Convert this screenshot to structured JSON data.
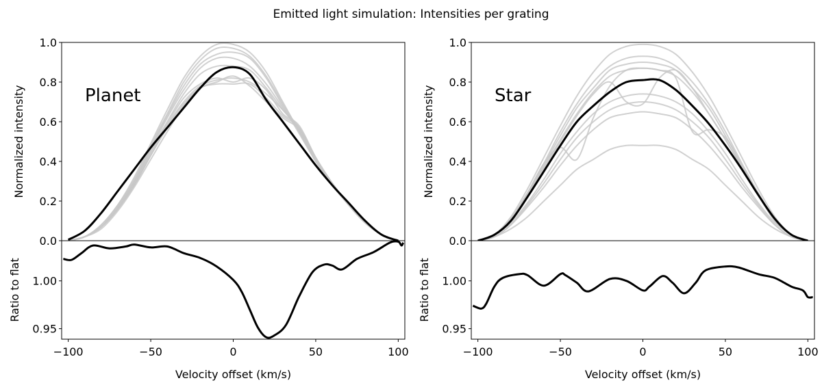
{
  "title": "Emitted light simulation: Intensities per grating",
  "colors": {
    "mean_line": "#000000",
    "grating_lines": "#c8c8c8",
    "axes": "#000000"
  },
  "chart_data": [
    {
      "type": "line",
      "panel_label": "Planet",
      "xlabel": "Velocity offset (km/s)",
      "xlim": [
        -104,
        104
      ],
      "xticks": [
        -100,
        -50,
        0,
        50,
        100
      ],
      "xtick_labels": [
        "−100",
        "−50",
        "0",
        "50",
        "100"
      ],
      "top": {
        "ylabel": "Normalized intensity",
        "ylim": [
          0,
          1.0
        ],
        "yticks": [
          0.0,
          0.2,
          0.4,
          0.6,
          0.8,
          1.0
        ],
        "ytick_labels": [
          "0.0",
          "0.2",
          "0.4",
          "0.6",
          "0.8",
          "1.0"
        ],
        "x": [
          -100,
          -90,
          -80,
          -70,
          -60,
          -50,
          -40,
          -30,
          -20,
          -10,
          0,
          10,
          20,
          30,
          40,
          50,
          60,
          70,
          80,
          90,
          100
        ],
        "grating_series": [
          [
            0,
            0.02,
            0.08,
            0.18,
            0.32,
            0.49,
            0.66,
            0.82,
            0.93,
            0.99,
            0.99,
            0.95,
            0.85,
            0.7,
            0.55,
            0.4,
            0.28,
            0.18,
            0.09,
            0.03,
            0
          ],
          [
            0,
            0.02,
            0.08,
            0.18,
            0.31,
            0.48,
            0.64,
            0.8,
            0.91,
            0.97,
            0.97,
            0.93,
            0.83,
            0.69,
            0.55,
            0.4,
            0.28,
            0.18,
            0.09,
            0.03,
            0
          ],
          [
            0,
            0.02,
            0.07,
            0.17,
            0.3,
            0.47,
            0.63,
            0.78,
            0.89,
            0.94,
            0.95,
            0.92,
            0.82,
            0.68,
            0.54,
            0.4,
            0.28,
            0.18,
            0.09,
            0.03,
            0
          ],
          [
            0,
            0.02,
            0.07,
            0.17,
            0.3,
            0.46,
            0.62,
            0.76,
            0.87,
            0.92,
            0.92,
            0.88,
            0.79,
            0.67,
            0.55,
            0.41,
            0.29,
            0.18,
            0.09,
            0.03,
            0
          ],
          [
            0,
            0.02,
            0.07,
            0.16,
            0.29,
            0.45,
            0.6,
            0.74,
            0.84,
            0.88,
            0.88,
            0.86,
            0.77,
            0.66,
            0.56,
            0.41,
            0.29,
            0.18,
            0.09,
            0.03,
            0
          ],
          [
            0,
            0.02,
            0.07,
            0.16,
            0.28,
            0.43,
            0.58,
            0.7,
            0.78,
            0.81,
            0.82,
            0.8,
            0.74,
            0.66,
            0.57,
            0.41,
            0.29,
            0.18,
            0.09,
            0.03,
            0
          ],
          [
            0,
            0.02,
            0.07,
            0.16,
            0.28,
            0.43,
            0.57,
            0.69,
            0.77,
            0.79,
            0.79,
            0.79,
            0.72,
            0.63,
            0.57,
            0.42,
            0.29,
            0.18,
            0.09,
            0.03,
            0
          ],
          [
            0,
            0.02,
            0.07,
            0.16,
            0.29,
            0.44,
            0.59,
            0.72,
            0.79,
            0.82,
            0.8,
            0.82,
            0.76,
            0.64,
            0.58,
            0.42,
            0.29,
            0.18,
            0.09,
            0.03,
            0
          ],
          [
            0,
            0.02,
            0.06,
            0.15,
            0.27,
            0.41,
            0.55,
            0.68,
            0.77,
            0.8,
            0.83,
            0.78,
            0.7,
            0.62,
            0.56,
            0.41,
            0.29,
            0.18,
            0.09,
            0.03,
            0
          ]
        ],
        "mean_series": [
          0.005,
          0.05,
          0.14,
          0.25,
          0.36,
          0.47,
          0.57,
          0.67,
          0.77,
          0.85,
          0.875,
          0.84,
          0.71,
          0.6,
          0.49,
          0.38,
          0.28,
          0.19,
          0.1,
          0.03,
          0.0
        ]
      },
      "bottom": {
        "ylabel": "Ratio to flat",
        "ylim": [
          0.939,
          1.042
        ],
        "yticks": [
          0.95,
          1.0
        ],
        "ytick_labels": [
          "0.95",
          "1.00"
        ],
        "x": [
          -103,
          -98,
          -92,
          -85,
          -75,
          -65,
          -60,
          -50,
          -40,
          -30,
          -20,
          -10,
          0,
          5,
          10,
          15,
          20,
          25,
          32,
          40,
          48,
          55,
          60,
          66,
          75,
          85,
          95,
          100,
          102,
          103
        ],
        "ratio": [
          1.023,
          1.022,
          1.029,
          1.037,
          1.034,
          1.036,
          1.038,
          1.035,
          1.036,
          1.029,
          1.024,
          1.015,
          1.001,
          0.989,
          0.97,
          0.951,
          0.941,
          0.943,
          0.954,
          0.984,
          1.009,
          1.017,
          1.016,
          1.012,
          1.023,
          1.03,
          1.04,
          1.041,
          1.037,
          1.04
        ]
      }
    },
    {
      "type": "line",
      "panel_label": "Star",
      "xlabel": "Velocity offset (km/s)",
      "xlim": [
        -104,
        104
      ],
      "xticks": [
        -100,
        -50,
        0,
        50,
        100
      ],
      "xtick_labels": [
        "−100",
        "−50",
        "0",
        "50",
        "100"
      ],
      "top": {
        "ylabel": "Normalized intensity",
        "ylim": [
          0,
          1.0
        ],
        "yticks": [
          0.0,
          0.2,
          0.4,
          0.6,
          0.8,
          1.0
        ],
        "ytick_labels": [
          "0.0",
          "0.2",
          "0.4",
          "0.6",
          "0.8",
          "1.0"
        ],
        "x": [
          -100,
          -90,
          -80,
          -70,
          -60,
          -50,
          -40,
          -30,
          -20,
          -10,
          0,
          10,
          20,
          30,
          40,
          50,
          60,
          70,
          80,
          90,
          100
        ],
        "grating_series": [
          [
            0,
            0.03,
            0.12,
            0.26,
            0.42,
            0.58,
            0.73,
            0.85,
            0.94,
            0.98,
            0.99,
            0.98,
            0.94,
            0.85,
            0.73,
            0.58,
            0.42,
            0.26,
            0.12,
            0.03,
            0
          ],
          [
            0,
            0.03,
            0.11,
            0.24,
            0.39,
            0.55,
            0.69,
            0.8,
            0.88,
            0.92,
            0.93,
            0.92,
            0.88,
            0.8,
            0.69,
            0.55,
            0.39,
            0.24,
            0.11,
            0.03,
            0
          ],
          [
            0,
            0.03,
            0.11,
            0.23,
            0.38,
            0.53,
            0.67,
            0.77,
            0.86,
            0.89,
            0.9,
            0.89,
            0.86,
            0.77,
            0.67,
            0.53,
            0.38,
            0.23,
            0.11,
            0.03,
            0
          ],
          [
            0,
            0.03,
            0.1,
            0.23,
            0.37,
            0.51,
            0.64,
            0.75,
            0.83,
            0.86,
            0.87,
            0.86,
            0.83,
            0.75,
            0.64,
            0.51,
            0.37,
            0.23,
            0.1,
            0.03,
            0
          ],
          [
            0,
            0.03,
            0.11,
            0.24,
            0.39,
            0.47,
            0.41,
            0.62,
            0.78,
            0.86,
            0.87,
            0.86,
            0.82,
            0.55,
            0.56,
            0.52,
            0.38,
            0.23,
            0.1,
            0.03,
            0
          ],
          [
            0,
            0.03,
            0.1,
            0.22,
            0.36,
            0.5,
            0.63,
            0.74,
            0.8,
            0.7,
            0.69,
            0.82,
            0.86,
            0.77,
            0.64,
            0.51,
            0.37,
            0.23,
            0.1,
            0.03,
            0
          ],
          [
            0,
            0.03,
            0.09,
            0.19,
            0.31,
            0.44,
            0.55,
            0.64,
            0.7,
            0.73,
            0.74,
            0.73,
            0.7,
            0.64,
            0.55,
            0.44,
            0.31,
            0.19,
            0.09,
            0.03,
            0
          ],
          [
            0,
            0.02,
            0.08,
            0.18,
            0.29,
            0.41,
            0.52,
            0.6,
            0.66,
            0.69,
            0.7,
            0.69,
            0.66,
            0.6,
            0.52,
            0.41,
            0.29,
            0.18,
            0.08,
            0.02,
            0
          ],
          [
            0,
            0.02,
            0.08,
            0.17,
            0.27,
            0.38,
            0.48,
            0.56,
            0.62,
            0.64,
            0.65,
            0.64,
            0.62,
            0.56,
            0.48,
            0.38,
            0.27,
            0.17,
            0.08,
            0.02,
            0
          ],
          [
            0,
            0.02,
            0.06,
            0.12,
            0.2,
            0.28,
            0.36,
            0.41,
            0.46,
            0.48,
            0.48,
            0.48,
            0.46,
            0.41,
            0.36,
            0.28,
            0.2,
            0.12,
            0.06,
            0.02,
            0
          ]
        ],
        "mean_series": [
          0.0,
          0.03,
          0.1,
          0.22,
          0.35,
          0.48,
          0.6,
          0.68,
          0.75,
          0.8,
          0.81,
          0.81,
          0.76,
          0.68,
          0.59,
          0.48,
          0.36,
          0.23,
          0.11,
          0.03,
          0.0
        ]
      },
      "bottom": {
        "ylabel": "Ratio to flat",
        "ylim": [
          0.939,
          1.042
        ],
        "yticks": [
          0.95,
          1.0
        ],
        "ytick_labels": [
          "0.95",
          "1.00"
        ],
        "x": [
          -103,
          -98,
          -95,
          -90,
          -85,
          -75,
          -70,
          -60,
          -50,
          -47,
          -40,
          -33,
          -20,
          -10,
          0,
          4,
          12,
          18,
          25,
          32,
          38,
          50,
          58,
          70,
          80,
          90,
          97,
          100,
          103
        ],
        "ratio": [
          0.974,
          0.971,
          0.976,
          0.994,
          1.003,
          1.007,
          1.006,
          0.995,
          1.007,
          1.006,
          0.998,
          0.989,
          1.002,
          1.0,
          0.99,
          0.994,
          1.005,
          0.998,
          0.987,
          0.998,
          1.011,
          1.015,
          1.014,
          1.007,
          1.003,
          0.994,
          0.99,
          0.983,
          0.983
        ]
      }
    }
  ]
}
